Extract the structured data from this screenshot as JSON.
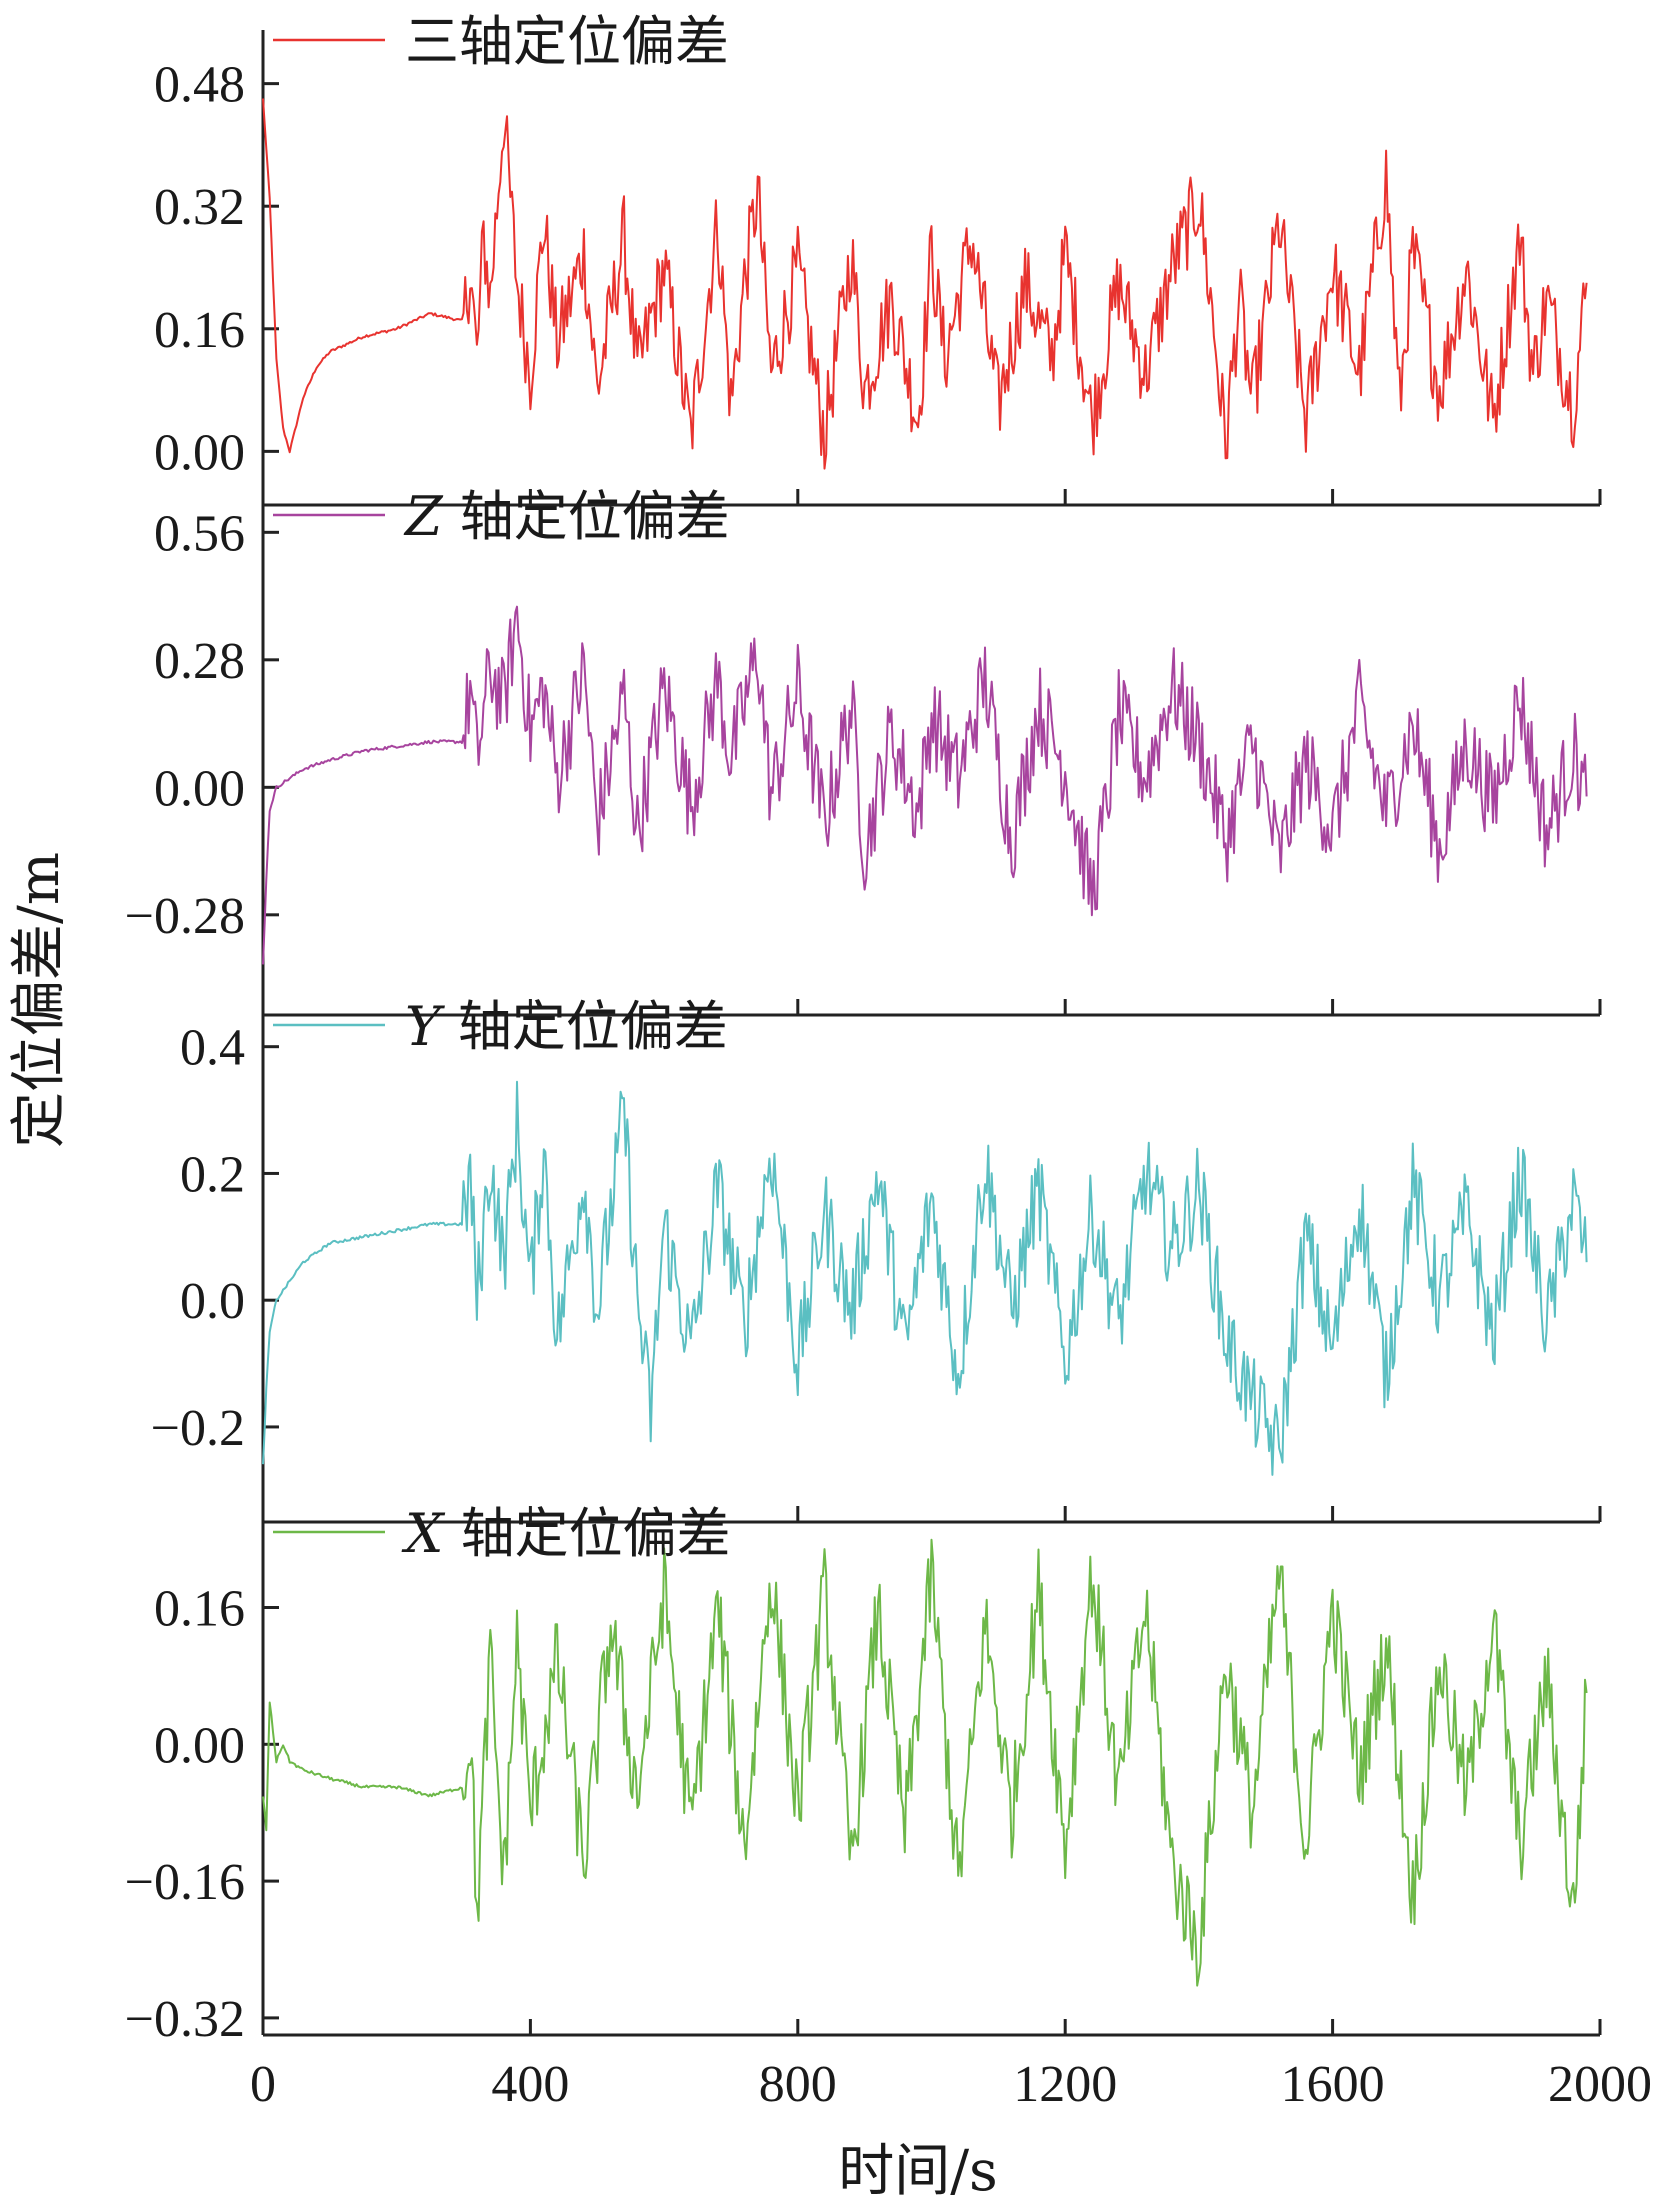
{
  "chart_data": {
    "type": "line",
    "ylabel": "定位偏差/m",
    "xlabel": "时间/s",
    "xlim": [
      0,
      2000
    ],
    "x_ticks": [
      0,
      400,
      800,
      1200,
      1600,
      2000
    ],
    "x_tick_labels": [
      "0",
      "400",
      "800",
      "1200",
      "1600",
      "2000"
    ],
    "grid": false,
    "legend_position": "top-left",
    "panels": [
      {
        "name": "三轴定位偏差",
        "color": "#e8332f",
        "ylim": [
          -0.07,
          0.55
        ],
        "y_ticks": [
          0.0,
          0.16,
          0.32,
          0.48
        ],
        "y_tick_labels": [
          "0.00",
          "0.16",
          "0.32",
          "0.48"
        ],
        "legend_parts": [
          "三轴定位偏差"
        ],
        "series": {
          "x": [
            0,
            10,
            20,
            30,
            40,
            60,
            80,
            100,
            150,
            200,
            250,
            300,
            310,
            320,
            330,
            340,
            360,
            380,
            400,
            420,
            440,
            480,
            500,
            540,
            560,
            600,
            640,
            680,
            700,
            720,
            740,
            760,
            800,
            840,
            880,
            900,
            940,
            980,
            1000,
            1020,
            1060,
            1100,
            1140,
            1180,
            1200,
            1240,
            1280,
            1320,
            1360,
            1400,
            1420,
            1440,
            1460,
            1480,
            1520,
            1560,
            1600,
            1640,
            1680,
            1700,
            1720,
            1760,
            1800,
            1840,
            1880,
            1900,
            1920,
            1960,
            1980
          ],
          "y": [
            0.46,
            0.33,
            0.12,
            0.03,
            0.0,
            0.07,
            0.11,
            0.13,
            0.15,
            0.16,
            0.18,
            0.17,
            0.24,
            0.12,
            0.28,
            0.2,
            0.44,
            0.22,
            0.1,
            0.3,
            0.14,
            0.26,
            0.08,
            0.28,
            0.1,
            0.24,
            0.02,
            0.3,
            0.06,
            0.22,
            0.34,
            0.1,
            0.24,
            0.02,
            0.26,
            0.08,
            0.2,
            0.04,
            0.26,
            0.12,
            0.28,
            0.06,
            0.22,
            0.12,
            0.26,
            0.04,
            0.22,
            0.1,
            0.24,
            0.33,
            0.18,
            0.01,
            0.2,
            0.06,
            0.3,
            0.04,
            0.24,
            0.1,
            0.36,
            0.06,
            0.26,
            0.08,
            0.24,
            0.04,
            0.28,
            0.1,
            0.2,
            0.06,
            0.22
          ]
        }
      },
      {
        "name": "Z 轴定位偏差",
        "color": "#a7449e",
        "ylim": [
          -0.5,
          0.62
        ],
        "y_ticks": [
          -0.28,
          0.0,
          0.28,
          0.56
        ],
        "y_tick_labels": [
          "−0.28",
          "0.00",
          "0.28",
          "0.56"
        ],
        "legend_parts": [
          "Z",
          " 轴定位偏差"
        ],
        "series": {
          "x": [
            0,
            5,
            10,
            20,
            40,
            60,
            100,
            150,
            200,
            250,
            300,
            310,
            320,
            340,
            360,
            380,
            400,
            420,
            440,
            480,
            500,
            540,
            560,
            600,
            640,
            680,
            700,
            740,
            760,
            800,
            840,
            880,
            900,
            940,
            980,
            1000,
            1040,
            1080,
            1120,
            1160,
            1200,
            1240,
            1260,
            1280,
            1320,
            1360,
            1400,
            1420,
            1440,
            1480,
            1520,
            1560,
            1600,
            1640,
            1680,
            1720,
            1760,
            1800,
            1840,
            1880,
            1920,
            1960,
            1980
          ],
          "y": [
            -0.39,
            -0.2,
            -0.05,
            0.0,
            0.02,
            0.04,
            0.06,
            0.08,
            0.09,
            0.1,
            0.1,
            0.22,
            0.06,
            0.26,
            0.18,
            0.38,
            0.12,
            0.22,
            0.02,
            0.26,
            -0.08,
            0.2,
            -0.1,
            0.22,
            -0.04,
            0.24,
            0.06,
            0.3,
            -0.02,
            0.22,
            -0.08,
            0.18,
            -0.14,
            0.12,
            -0.06,
            0.16,
            0.02,
            0.24,
            -0.12,
            0.18,
            0.04,
            -0.24,
            -0.06,
            0.16,
            0.02,
            0.22,
            0.1,
            0.0,
            -0.12,
            0.1,
            -0.16,
            0.06,
            -0.1,
            0.18,
            -0.06,
            0.14,
            -0.14,
            0.1,
            -0.04,
            0.2,
            -0.1,
            0.08,
            -0.02
          ]
        }
      },
      {
        "name": "Y 轴定位偏差",
        "color": "#5bbfc2",
        "ylim": [
          -0.35,
          0.45
        ],
        "y_ticks": [
          -0.2,
          0.0,
          0.2,
          0.4
        ],
        "y_tick_labels": [
          "−0.2",
          "0.0",
          "0.2",
          "0.4"
        ],
        "legend_parts": [
          "Y",
          " 轴定位偏差"
        ],
        "series": {
          "x": [
            0,
            5,
            10,
            20,
            40,
            60,
            100,
            150,
            200,
            250,
            300,
            310,
            320,
            340,
            360,
            380,
            400,
            420,
            440,
            480,
            500,
            540,
            560,
            580,
            600,
            640,
            680,
            720,
            760,
            800,
            840,
            880,
            920,
            960,
            1000,
            1040,
            1080,
            1120,
            1160,
            1200,
            1240,
            1280,
            1320,
            1360,
            1400,
            1440,
            1480,
            1520,
            1560,
            1600,
            1640,
            1680,
            1720,
            1760,
            1800,
            1840,
            1880,
            1920,
            1960,
            1980
          ],
          "y": [
            -0.26,
            -0.14,
            -0.05,
            0.0,
            0.03,
            0.06,
            0.09,
            0.1,
            0.11,
            0.12,
            0.12,
            0.2,
            0.0,
            0.22,
            0.06,
            0.28,
            0.02,
            0.24,
            -0.06,
            0.2,
            -0.02,
            0.3,
            0.0,
            -0.18,
            0.12,
            -0.08,
            0.18,
            -0.04,
            0.24,
            -0.1,
            0.14,
            -0.02,
            0.2,
            -0.08,
            0.16,
            -0.12,
            0.22,
            -0.02,
            0.18,
            -0.1,
            0.14,
            -0.04,
            0.2,
            0.08,
            0.18,
            -0.06,
            -0.16,
            -0.24,
            0.1,
            -0.08,
            0.16,
            -0.12,
            0.18,
            0.0,
            0.14,
            -0.06,
            0.2,
            -0.04,
            0.16,
            0.06
          ]
        }
      },
      {
        "name": "X 轴定位偏差",
        "color": "#6db848",
        "ylim": [
          -0.34,
          0.26
        ],
        "y_ticks": [
          -0.32,
          -0.16,
          0.0,
          0.16
        ],
        "y_tick_labels": [
          "−0.32",
          "−0.16",
          "0.00",
          "0.16"
        ],
        "legend_parts": [
          "X",
          " 轴定位偏差"
        ],
        "series": {
          "x": [
            0,
            5,
            10,
            20,
            30,
            40,
            60,
            100,
            150,
            200,
            250,
            300,
            310,
            320,
            340,
            360,
            380,
            400,
            440,
            480,
            520,
            560,
            600,
            640,
            680,
            720,
            760,
            800,
            840,
            880,
            920,
            960,
            1000,
            1040,
            1080,
            1120,
            1160,
            1200,
            1240,
            1280,
            1320,
            1360,
            1400,
            1440,
            1480,
            1520,
            1560,
            1600,
            1640,
            1680,
            1720,
            1760,
            1800,
            1840,
            1880,
            1920,
            1960,
            1980
          ],
          "y": [
            -0.06,
            -0.1,
            0.05,
            -0.02,
            0.0,
            -0.02,
            -0.03,
            -0.04,
            -0.05,
            -0.05,
            -0.06,
            -0.05,
            0.02,
            -0.2,
            0.1,
            -0.16,
            0.12,
            -0.08,
            0.1,
            -0.14,
            0.14,
            -0.06,
            0.18,
            -0.1,
            0.16,
            -0.12,
            0.2,
            -0.08,
            0.18,
            -0.14,
            0.16,
            -0.1,
            0.2,
            -0.16,
            0.14,
            -0.08,
            0.18,
            -0.12,
            0.2,
            -0.06,
            0.16,
            -0.14,
            -0.24,
            0.1,
            -0.08,
            0.2,
            -0.12,
            0.16,
            -0.04,
            0.12,
            -0.18,
            0.1,
            -0.06,
            0.14,
            -0.12,
            0.08,
            -0.2,
            0.06
          ]
        }
      }
    ]
  }
}
